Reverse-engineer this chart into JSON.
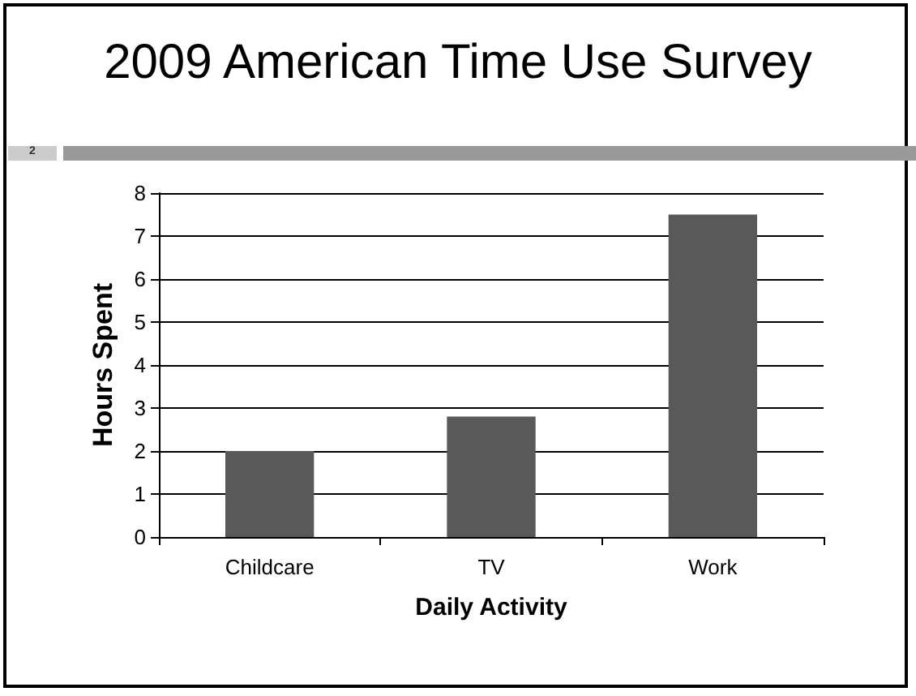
{
  "chart_data": {
    "type": "bar",
    "title": "2009 American Time Use Survey",
    "xlabel": "Daily Activity",
    "ylabel": "Hours Spent",
    "categories": [
      "Childcare",
      "TV",
      "Work"
    ],
    "values": [
      2.0,
      2.8,
      7.5
    ],
    "color": "#595959",
    "ylim": [
      0,
      8
    ],
    "yticks": [
      0,
      1,
      2,
      3,
      4,
      5,
      6,
      7,
      8
    ],
    "grid": "y",
    "annotations": [
      "2"
    ]
  }
}
